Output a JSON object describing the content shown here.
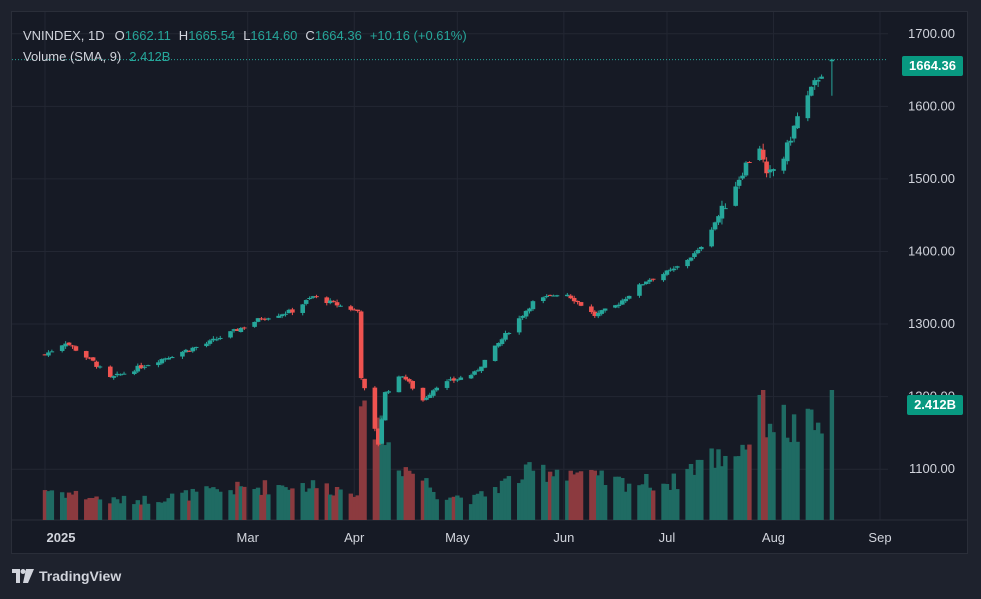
{
  "header": {
    "symbol": "VNINDEX, 1D",
    "open_label": "O",
    "open": "1662.11",
    "high_label": "H",
    "high": "1665.54",
    "low_label": "L",
    "low": "1614.60",
    "close_label": "C",
    "close": "1664.36",
    "change": "+10.16 (+0.61%)",
    "volume_label": "Volume (SMA, 9)",
    "volume_value": "2.412B"
  },
  "tags": {
    "last_price": "1664.36",
    "volume": "2.412B"
  },
  "brand": {
    "name": "TradingView"
  },
  "colors": {
    "up": "#26a69a",
    "down": "#ef5350",
    "vol_up": "#1f6b63",
    "vol_down": "#8c3a3f"
  },
  "chart_data": {
    "type": "candlestick",
    "y_ticks": [
      "1700.00",
      "1600.00",
      "1500.00",
      "1400.00",
      "1300.00",
      "1200.00",
      "1100.00"
    ],
    "ylim": [
      1030,
      1730
    ],
    "x_ticks": [
      "2025",
      "Mar",
      "Apr",
      "May",
      "Jun",
      "Jul",
      "Aug",
      "Sep"
    ],
    "grid": true,
    "anchors": [
      {
        "date": "2025-01-01",
        "close": 1258,
        "vol": 0.45
      },
      {
        "date": "2025-01-07",
        "close": 1275,
        "vol": 0.4
      },
      {
        "date": "2025-01-15",
        "close": 1248,
        "vol": 0.33
      },
      {
        "date": "2025-01-20",
        "close": 1225,
        "vol": 0.28
      },
      {
        "date": "2025-01-31",
        "close": 1245,
        "vol": 0.3
      },
      {
        "date": "2025-02-10",
        "close": 1262,
        "vol": 0.36
      },
      {
        "date": "2025-02-17",
        "close": 1273,
        "vol": 0.4
      },
      {
        "date": "2025-02-25",
        "close": 1290,
        "vol": 0.45
      },
      {
        "date": "2025-03-05",
        "close": 1308,
        "vol": 0.48
      },
      {
        "date": "2025-03-14",
        "close": 1318,
        "vol": 0.52
      },
      {
        "date": "2025-03-20",
        "close": 1338,
        "vol": 0.5
      },
      {
        "date": "2025-03-28",
        "close": 1325,
        "vol": 0.45
      },
      {
        "date": "2025-04-02",
        "close": 1318,
        "vol": 0.45
      },
      {
        "date": "2025-04-03",
        "close": 1228,
        "vol": 1.35
      },
      {
        "date": "2025-04-08",
        "close": 1135,
        "vol": 1.6
      },
      {
        "date": "2025-04-10",
        "close": 1205,
        "vol": 1.2
      },
      {
        "date": "2025-04-15",
        "close": 1230,
        "vol": 0.8
      },
      {
        "date": "2025-04-21",
        "close": 1195,
        "vol": 0.6
      },
      {
        "date": "2025-04-25",
        "close": 1215,
        "vol": 0.4
      },
      {
        "date": "2025-05-06",
        "close": 1232,
        "vol": 0.3
      },
      {
        "date": "2025-05-15",
        "close": 1285,
        "vol": 0.55
      },
      {
        "date": "2025-05-23",
        "close": 1330,
        "vol": 0.7
      },
      {
        "date": "2025-06-01",
        "close": 1345,
        "vol": 0.75
      },
      {
        "date": "2025-06-10",
        "close": 1312,
        "vol": 0.6
      },
      {
        "date": "2025-06-16",
        "close": 1325,
        "vol": 0.55
      },
      {
        "date": "2025-06-25",
        "close": 1360,
        "vol": 0.55
      },
      {
        "date": "2025-07-03",
        "close": 1375,
        "vol": 0.55
      },
      {
        "date": "2025-07-10",
        "close": 1400,
        "vol": 0.85
      },
      {
        "date": "2025-07-18",
        "close": 1465,
        "vol": 0.95
      },
      {
        "date": "2025-07-24",
        "close": 1520,
        "vol": 1.1
      },
      {
        "date": "2025-07-28",
        "close": 1545,
        "vol": 1.85
      },
      {
        "date": "2025-07-30",
        "close": 1502,
        "vol": 1.55
      },
      {
        "date": "2025-08-04",
        "close": 1530,
        "vol": 1.4
      },
      {
        "date": "2025-08-08",
        "close": 1585,
        "vol": 1.3
      },
      {
        "date": "2025-08-14",
        "close": 1640,
        "vol": 1.35
      },
      {
        "date": "2025-08-18",
        "close": 1664,
        "vol": 1.7
      }
    ],
    "last_candle": {
      "open": 1662.11,
      "high": 1665.54,
      "low": 1614.6,
      "close": 1664.36
    }
  }
}
